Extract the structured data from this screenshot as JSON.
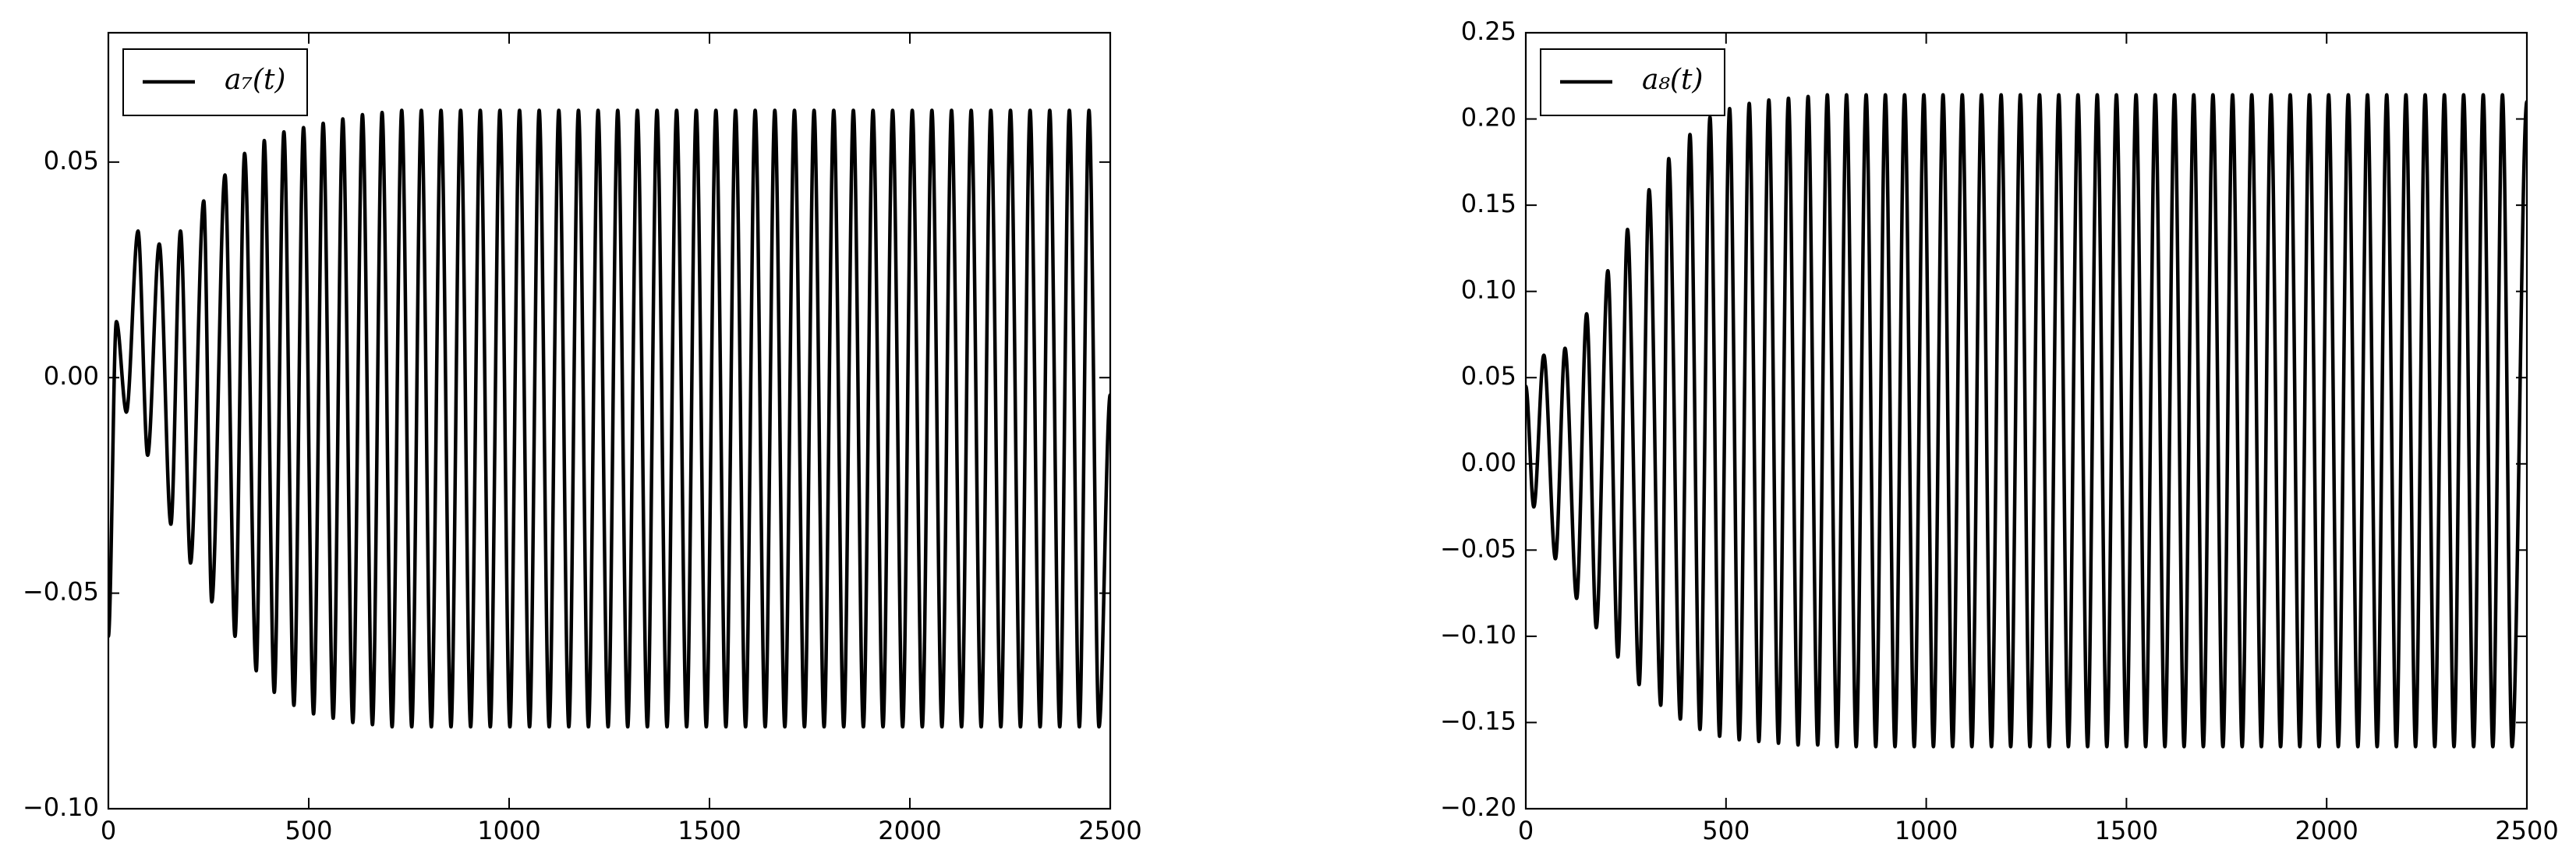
{
  "chart_data": [
    {
      "type": "line",
      "legend": "upper left",
      "xlim": [
        0,
        2500
      ],
      "ylim": [
        -0.1,
        0.08
      ],
      "xticks": [
        0,
        500,
        1000,
        1500,
        2000,
        2500
      ],
      "yticks": [
        {
          "value": -0.1,
          "label": "−0.10"
        },
        {
          "value": -0.05,
          "label": "−0.05"
        },
        {
          "value": 0,
          "label": "0.00"
        },
        0.05
      ],
      "x": [
        0,
        20,
        45,
        74,
        98,
        127,
        156,
        180,
        205,
        238,
        258,
        291,
        316,
        340,
        369,
        389,
        414,
        438,
        463,
        487,
        512,
        536,
        561,
        585,
        610,
        634,
        659,
        683,
        708,
        732,
        757,
        781,
        806,
        830,
        855,
        879,
        904,
        928,
        953,
        977,
        1002,
        1026,
        1051,
        1075,
        1100,
        1124,
        1149,
        1173,
        1198,
        1222,
        1247,
        1271,
        1296,
        1320,
        1345,
        1369,
        1394,
        1418,
        1443,
        1467,
        1492,
        1516,
        1541,
        1565,
        1590,
        1614,
        1639,
        1663,
        1688,
        1712,
        1737,
        1761,
        1786,
        1810,
        1835,
        1859,
        1884,
        1908,
        1933,
        1957,
        1982,
        2006,
        2031,
        2055,
        2080,
        2104,
        2129,
        2153,
        2178,
        2202,
        2227,
        2251,
        2276,
        2300,
        2325,
        2349,
        2374,
        2398,
        2423,
        2447,
        2472,
        2500
      ],
      "series": [
        {
          "name": "a₇(t)",
          "color": "#000000",
          "values": [
            -0.06,
            0.013,
            -0.008,
            0.034,
            -0.018,
            0.031,
            -0.034,
            0.034,
            -0.043,
            0.041,
            -0.052,
            0.047,
            -0.06,
            0.052,
            -0.068,
            0.055,
            -0.073,
            0.057,
            -0.076,
            0.058,
            -0.078,
            0.059,
            -0.079,
            0.06,
            -0.08,
            0.061,
            -0.0805,
            0.0615,
            -0.081,
            0.062,
            -0.081,
            0.062,
            -0.081,
            0.062,
            -0.081,
            0.062,
            -0.081,
            0.062,
            -0.081,
            0.062,
            -0.081,
            0.062,
            -0.081,
            0.062,
            -0.081,
            0.062,
            -0.081,
            0.062,
            -0.081,
            0.062,
            -0.081,
            0.062,
            -0.081,
            0.062,
            -0.081,
            0.062,
            -0.081,
            0.062,
            -0.081,
            0.062,
            -0.081,
            0.062,
            -0.081,
            0.062,
            -0.081,
            0.062,
            -0.081,
            0.062,
            -0.081,
            0.062,
            -0.081,
            0.062,
            -0.081,
            0.062,
            -0.081,
            0.062,
            -0.081,
            0.062,
            -0.081,
            0.062,
            -0.081,
            0.062,
            -0.081,
            0.062,
            -0.081,
            0.062,
            -0.081,
            0.062,
            -0.081,
            0.062,
            -0.081,
            0.062,
            -0.081,
            0.062,
            -0.081,
            0.062,
            -0.081,
            0.062,
            -0.081,
            0.062,
            -0.081,
            -0.004
          ]
        }
      ]
    },
    {
      "type": "line",
      "legend": "upper left",
      "xlim": [
        0,
        2500
      ],
      "ylim": [
        -0.2,
        0.25
      ],
      "xticks": [
        0,
        500,
        1000,
        1500,
        2000,
        2500
      ],
      "yticks": [
        {
          "value": -0.2,
          "label": "−0.20"
        },
        {
          "value": -0.15,
          "label": "−0.15"
        },
        {
          "value": -0.1,
          "label": "−0.10"
        },
        {
          "value": -0.05,
          "label": "−0.05"
        },
        {
          "value": 0,
          "label": "0.00"
        },
        0.05,
        {
          "value": 0.1,
          "label": "0.10"
        },
        0.15,
        {
          "value": 0.2,
          "label": "0.20"
        },
        0.25
      ],
      "x": [
        0,
        20,
        45,
        74,
        98,
        127,
        152,
        176,
        205,
        230,
        254,
        283,
        308,
        337,
        357,
        386,
        410,
        435,
        460,
        484,
        509,
        533,
        558,
        582,
        607,
        631,
        656,
        680,
        705,
        729,
        753,
        777,
        801,
        825,
        850,
        874,
        898,
        922,
        946,
        970,
        994,
        1018,
        1042,
        1066,
        1090,
        1114,
        1138,
        1163,
        1187,
        1211,
        1235,
        1259,
        1283,
        1307,
        1331,
        1355,
        1379,
        1403,
        1427,
        1451,
        1475,
        1500,
        1524,
        1548,
        1572,
        1596,
        1620,
        1644,
        1668,
        1692,
        1716,
        1741,
        1765,
        1789,
        1813,
        1837,
        1861,
        1885,
        1909,
        1933,
        1957,
        1981,
        2005,
        2029,
        2054,
        2078,
        2102,
        2126,
        2150,
        2174,
        2198,
        2222,
        2246,
        2270,
        2294,
        2318,
        2342,
        2367,
        2391,
        2415,
        2439,
        2463,
        2500
      ],
      "series": [
        {
          "name": "a₈(t)",
          "color": "#000000",
          "values": [
            0.045,
            -0.025,
            0.063,
            -0.055,
            0.067,
            -0.078,
            0.087,
            -0.095,
            0.112,
            -0.112,
            0.136,
            -0.128,
            0.159,
            -0.14,
            0.177,
            -0.148,
            0.191,
            -0.154,
            0.201,
            -0.158,
            0.206,
            -0.16,
            0.209,
            -0.161,
            0.211,
            -0.162,
            0.212,
            -0.163,
            0.213,
            -0.163,
            0.214,
            -0.164,
            0.214,
            -0.164,
            0.214,
            -0.164,
            0.214,
            -0.164,
            0.214,
            -0.164,
            0.214,
            -0.164,
            0.214,
            -0.164,
            0.214,
            -0.164,
            0.214,
            -0.164,
            0.214,
            -0.164,
            0.214,
            -0.164,
            0.214,
            -0.164,
            0.214,
            -0.164,
            0.214,
            -0.164,
            0.214,
            -0.164,
            0.214,
            -0.164,
            0.214,
            -0.164,
            0.214,
            -0.164,
            0.214,
            -0.164,
            0.214,
            -0.164,
            0.214,
            -0.164,
            0.214,
            -0.164,
            0.214,
            -0.164,
            0.214,
            -0.164,
            0.214,
            -0.164,
            0.214,
            -0.164,
            0.214,
            -0.164,
            0.214,
            -0.164,
            0.214,
            -0.164,
            0.214,
            -0.164,
            0.214,
            -0.164,
            0.214,
            -0.164,
            0.214,
            -0.164,
            0.214,
            -0.164,
            0.214,
            -0.164,
            0.214,
            -0.164,
            0.21
          ]
        }
      ]
    }
  ]
}
